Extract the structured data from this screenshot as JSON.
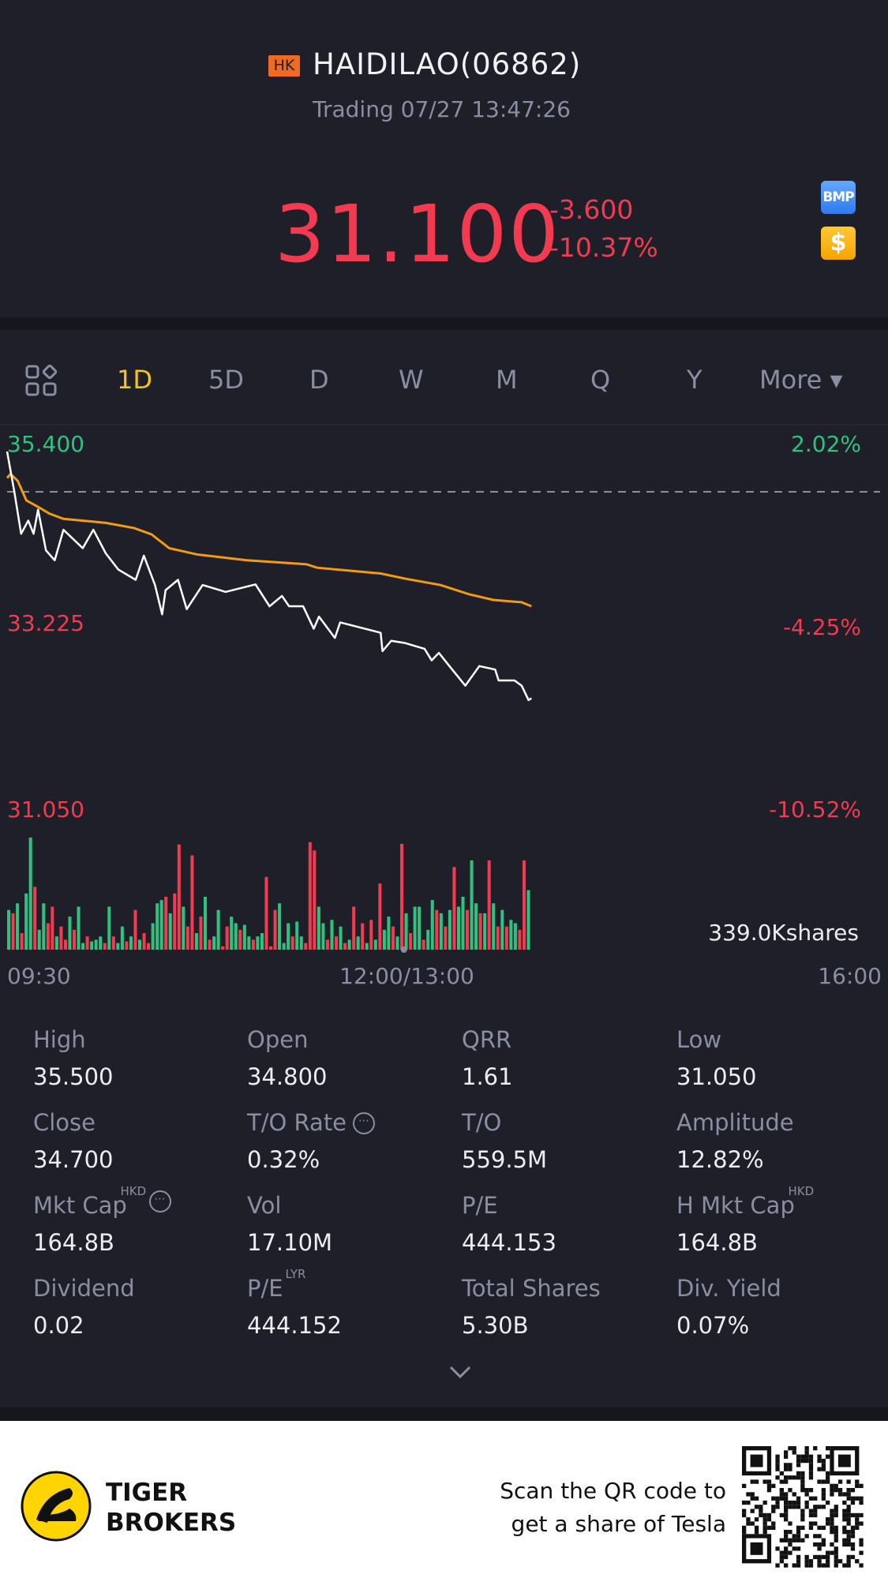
{
  "header": {
    "market_badge": "HK",
    "title": "HAIDILAO(06862)",
    "status": "Trading 07/27 13:47:26",
    "price": "31.100",
    "change": "-3.600",
    "change_pct": "-10.37%",
    "badge_bmp": "BMP",
    "badge_currency": "$"
  },
  "tabs": [
    {
      "label": "1D",
      "active": true
    },
    {
      "label": "5D"
    },
    {
      "label": "D"
    },
    {
      "label": "W"
    },
    {
      "label": "M"
    },
    {
      "label": "Q"
    },
    {
      "label": "Y"
    },
    {
      "label": "More ▾"
    }
  ],
  "colors": {
    "up": "#2ec27e",
    "down": "#f23a50",
    "avg": "#f39c12",
    "price_line": "#ffffff",
    "accent": "#f5c518"
  },
  "chart_data": {
    "type": "line",
    "axis_left": [
      "35.400",
      "33.225",
      "31.050"
    ],
    "axis_right": [
      "2.02%",
      "-4.25%",
      "-10.52%"
    ],
    "ylim": [
      31.05,
      35.4
    ],
    "prev_close": 34.7,
    "x_labels": [
      "09:30",
      "12:00/13:00",
      "16:00"
    ],
    "x_range_minutes": [
      0,
      330
    ],
    "volume_max_label": "339.0Kshares",
    "price": [
      [
        0,
        35.4
      ],
      [
        2.7,
        34.71
      ],
      [
        5.3,
        33.97
      ],
      [
        8,
        34.2
      ],
      [
        10,
        33.97
      ],
      [
        11.7,
        34.39
      ],
      [
        14.7,
        33.68
      ],
      [
        18,
        33.51
      ],
      [
        21.3,
        34.04
      ],
      [
        28.6,
        33.72
      ],
      [
        32.6,
        34.04
      ],
      [
        37.3,
        33.63
      ],
      [
        42,
        33.35
      ],
      [
        48.6,
        33.17
      ],
      [
        51.7,
        33.59
      ],
      [
        55.9,
        33.08
      ],
      [
        58.6,
        32.57
      ],
      [
        59.9,
        32.99
      ],
      [
        64.6,
        33.17
      ],
      [
        67.9,
        32.66
      ],
      [
        73.9,
        33.08
      ],
      [
        82.6,
        32.96
      ],
      [
        93.9,
        33.09
      ],
      [
        99.2,
        32.71
      ],
      [
        103.9,
        32.89
      ],
      [
        106.6,
        32.71
      ],
      [
        111.9,
        32.71
      ],
      [
        115.9,
        32.32
      ],
      [
        117.9,
        32.53
      ],
      [
        123.9,
        32.16
      ],
      [
        125.9,
        32.43
      ],
      [
        141.2,
        32.25
      ],
      [
        141.9,
        31.93
      ],
      [
        145.2,
        32.11
      ],
      [
        150.5,
        32.07
      ],
      [
        157.8,
        31.97
      ],
      [
        160.5,
        31.77
      ],
      [
        163.2,
        31.9
      ],
      [
        167.2,
        31.67
      ],
      [
        173.2,
        31.33
      ],
      [
        178.5,
        31.67
      ],
      [
        184.5,
        31.61
      ],
      [
        185.8,
        31.42
      ],
      [
        191.8,
        31.42
      ],
      [
        194.5,
        31.33
      ],
      [
        197.1,
        31.08
      ],
      [
        198.2,
        31.11
      ]
    ],
    "avg_price": [
      [
        0,
        34.94
      ],
      [
        1.3,
        35.01
      ],
      [
        4,
        34.89
      ],
      [
        7.3,
        34.55
      ],
      [
        12,
        34.43
      ],
      [
        16,
        34.32
      ],
      [
        21.3,
        34.23
      ],
      [
        37.3,
        34.16
      ],
      [
        48,
        34.07
      ],
      [
        54.6,
        33.96
      ],
      [
        61.3,
        33.72
      ],
      [
        71.9,
        33.61
      ],
      [
        90.6,
        33.51
      ],
      [
        113.2,
        33.44
      ],
      [
        117.2,
        33.38
      ],
      [
        141.2,
        33.28
      ],
      [
        150.5,
        33.19
      ],
      [
        163.8,
        33.08
      ],
      [
        174.5,
        32.92
      ],
      [
        183.8,
        32.82
      ],
      [
        194.5,
        32.78
      ],
      [
        198.2,
        32.71
      ]
    ],
    "volume_k": [
      [
        120,
        "g"
      ],
      [
        110,
        "r"
      ],
      [
        140,
        "g"
      ],
      [
        50,
        "r"
      ],
      [
        170,
        "g"
      ],
      [
        339,
        "g"
      ],
      [
        190,
        "r"
      ],
      [
        60,
        "g"
      ],
      [
        140,
        "g"
      ],
      [
        80,
        "r"
      ],
      [
        130,
        "r"
      ],
      [
        40,
        "g"
      ],
      [
        70,
        "r"
      ],
      [
        30,
        "r"
      ],
      [
        100,
        "g"
      ],
      [
        60,
        "r"
      ],
      [
        130,
        "g"
      ],
      [
        20,
        "g"
      ],
      [
        40,
        "r"
      ],
      [
        25,
        "g"
      ],
      [
        30,
        "g"
      ],
      [
        40,
        "g"
      ],
      [
        20,
        "r"
      ],
      [
        130,
        "g"
      ],
      [
        40,
        "r"
      ],
      [
        20,
        "g"
      ],
      [
        70,
        "g"
      ],
      [
        25,
        "r"
      ],
      [
        40,
        "g"
      ],
      [
        120,
        "r"
      ],
      [
        30,
        "g"
      ],
      [
        50,
        "r"
      ],
      [
        20,
        "r"
      ],
      [
        80,
        "g"
      ],
      [
        140,
        "g"
      ],
      [
        150,
        "g"
      ],
      [
        160,
        "r"
      ],
      [
        110,
        "g"
      ],
      [
        170,
        "r"
      ],
      [
        318,
        "r"
      ],
      [
        130,
        "g"
      ],
      [
        70,
        "r"
      ],
      [
        285,
        "r"
      ],
      [
        50,
        "g"
      ],
      [
        100,
        "r"
      ],
      [
        160,
        "g"
      ],
      [
        30,
        "r"
      ],
      [
        40,
        "g"
      ],
      [
        120,
        "g"
      ],
      [
        10,
        "r"
      ],
      [
        70,
        "r"
      ],
      [
        100,
        "g"
      ],
      [
        80,
        "g"
      ],
      [
        60,
        "r"
      ],
      [
        75,
        "g"
      ],
      [
        40,
        "g"
      ],
      [
        30,
        "r"
      ],
      [
        40,
        "g"
      ],
      [
        50,
        "g"
      ],
      [
        220,
        "r"
      ],
      [
        10,
        "r"
      ],
      [
        120,
        "r"
      ],
      [
        140,
        "g"
      ],
      [
        20,
        "g"
      ],
      [
        80,
        "g"
      ],
      [
        40,
        "r"
      ],
      [
        85,
        "g"
      ],
      [
        40,
        "g"
      ],
      [
        20,
        "r"
      ],
      [
        325,
        "r"
      ],
      [
        300,
        "r"
      ],
      [
        130,
        "g"
      ],
      [
        80,
        "g"
      ],
      [
        30,
        "r"
      ],
      [
        90,
        "g"
      ],
      [
        40,
        "r"
      ],
      [
        70,
        "g"
      ],
      [
        20,
        "r"
      ],
      [
        30,
        "g"
      ],
      [
        130,
        "r"
      ],
      [
        40,
        "g"
      ],
      [
        80,
        "r"
      ],
      [
        20,
        "g"
      ],
      [
        90,
        "r"
      ],
      [
        30,
        "g"
      ],
      [
        200,
        "r"
      ],
      [
        60,
        "g"
      ],
      [
        100,
        "g"
      ],
      [
        70,
        "r"
      ],
      [
        40,
        "g"
      ],
      [
        320,
        "r"
      ],
      [
        110,
        "g"
      ],
      [
        50,
        "r"
      ],
      [
        130,
        "g"
      ],
      [
        130,
        "g"
      ],
      [
        30,
        "r"
      ],
      [
        60,
        "g"
      ],
      [
        150,
        "g"
      ],
      [
        120,
        "r"
      ],
      [
        110,
        "g"
      ],
      [
        70,
        "r"
      ],
      [
        120,
        "g"
      ],
      [
        250,
        "r"
      ],
      [
        130,
        "g"
      ],
      [
        160,
        "g"
      ],
      [
        120,
        "r"
      ],
      [
        270,
        "g"
      ],
      [
        140,
        "g"
      ],
      [
        110,
        "r"
      ],
      [
        110,
        "g"
      ],
      [
        270,
        "r"
      ],
      [
        140,
        "g"
      ],
      [
        70,
        "r"
      ],
      [
        120,
        "g"
      ],
      [
        70,
        "r"
      ],
      [
        90,
        "g"
      ],
      [
        80,
        "g"
      ],
      [
        60,
        "r"
      ],
      [
        270,
        "r"
      ],
      [
        180,
        "g"
      ]
    ]
  },
  "stats": [
    {
      "label": "High",
      "value": "35.500"
    },
    {
      "label": "Open",
      "value": "34.800"
    },
    {
      "label": "QRR",
      "value": "1.61"
    },
    {
      "label": "Low",
      "value": "31.050"
    },
    {
      "label": "Close",
      "value": "34.700"
    },
    {
      "label": "T/O Rate",
      "value": "0.32%",
      "info": "⋯"
    },
    {
      "label": "T/O",
      "value": "559.5M"
    },
    {
      "label": "Amplitude",
      "value": "12.82%"
    },
    {
      "label": "Mkt Cap",
      "value": "164.8B",
      "sup": "HKD",
      "info": "⋯"
    },
    {
      "label": "Vol",
      "value": "17.10M"
    },
    {
      "label": "P/E",
      "value": "444.153"
    },
    {
      "label": "H Mkt Cap",
      "value": "164.8B",
      "sup": "HKD"
    },
    {
      "label": "Dividend",
      "value": "0.02"
    },
    {
      "label": "P/E",
      "value": "444.152",
      "sup": "LYR"
    },
    {
      "label": "Total Shares",
      "value": "5.30B"
    },
    {
      "label": "Div. Yield",
      "value": "0.07%"
    }
  ],
  "footer": {
    "brand_line1": "TIGER",
    "brand_line2": "BROKERS",
    "promo_line1": "Scan the QR code to",
    "promo_line2": "get a share of Tesla"
  }
}
